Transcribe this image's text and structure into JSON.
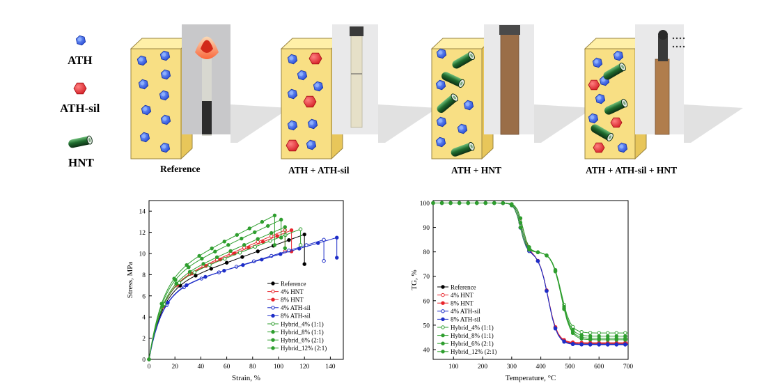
{
  "legend": {
    "ath": "ATH",
    "ath_sil": "ATH-sil",
    "hnt": "HNT"
  },
  "panels": [
    "Reference",
    "ATH + ATH-sil",
    "ATH + HNT",
    "ATH + ATH-sil + HNT"
  ],
  "colors": {
    "ath": "#2f5fe8",
    "ath_sil": "#e8242b",
    "hnt": "#1f6b2e",
    "box": "#f8df84"
  },
  "chart_data": [
    {
      "type": "line",
      "xlabel": "Strain, %",
      "ylabel": "Stress, MPa",
      "xlim": [
        0,
        150
      ],
      "ylim": [
        0,
        15
      ],
      "xticks": [
        "0",
        "20",
        "40",
        "60",
        "80",
        "100",
        "120",
        "140"
      ],
      "yticks": [
        "0",
        "2",
        "4",
        "6",
        "8",
        "10",
        "12",
        "14"
      ],
      "series": [
        {
          "name": "Reference",
          "color": "#000000",
          "marker": "filled",
          "max_stress": 11.8,
          "break_strain": 120,
          "failure_stress": 9.0
        },
        {
          "name": "4% HNT",
          "color": "#e8242b",
          "marker": "open",
          "max_stress": 12.2,
          "break_strain": 105,
          "failure_stress": 10.2
        },
        {
          "name": "8% HNT",
          "color": "#e8242b",
          "marker": "filled",
          "max_stress": 12.2,
          "break_strain": 110,
          "failure_stress": 10.2
        },
        {
          "name": "4% ATH-sil",
          "color": "#1d2dc8",
          "marker": "open",
          "max_stress": 11.3,
          "break_strain": 135,
          "failure_stress": 9.3
        },
        {
          "name": "8% ATH-sil",
          "color": "#1d2dc8",
          "marker": "filled",
          "max_stress": 11.5,
          "break_strain": 145,
          "failure_stress": 9.6
        },
        {
          "name": "Hybrid_4% (1:1)",
          "color": "#2e9e2e",
          "marker": "open",
          "max_stress": 12.3,
          "break_strain": 117,
          "failure_stress": 10.8
        },
        {
          "name": "Hybrid_8% (1:1)",
          "color": "#2e9e2e",
          "marker": "filled",
          "max_stress": 13.2,
          "break_strain": 102,
          "failure_stress": 11.5
        },
        {
          "name": "Hybrid_6% (2:1)",
          "color": "#2e9e2e",
          "marker": "filled",
          "max_stress": 12.5,
          "break_strain": 105,
          "failure_stress": 10.5
        },
        {
          "name": "Hybrid_12% (2:1)",
          "color": "#2e9e2e",
          "marker": "filled",
          "max_stress": 13.6,
          "break_strain": 97,
          "failure_stress": 10.8
        }
      ]
    },
    {
      "type": "line",
      "xlabel": "Temperature, °C",
      "ylabel": "TG, %",
      "xlim": [
        30,
        700
      ],
      "ylim": [
        36,
        101
      ],
      "xticks": [
        "100",
        "200",
        "300",
        "400",
        "500",
        "600",
        "700"
      ],
      "yticks": [
        "40",
        "50",
        "60",
        "70",
        "80",
        "90",
        "100"
      ],
      "series": [
        {
          "name": "Reference",
          "color": "#000000",
          "marker": "filled",
          "residue": 42.5
        },
        {
          "name": "4% HNT",
          "color": "#e8242b",
          "marker": "open",
          "residue": 42.5
        },
        {
          "name": "8% HNT",
          "color": "#e8242b",
          "marker": "filled",
          "residue": 42.8
        },
        {
          "name": "4% ATH-sil",
          "color": "#1d2dc8",
          "marker": "open",
          "residue": 42.2
        },
        {
          "name": "8% ATH-sil",
          "color": "#1d2dc8",
          "marker": "filled",
          "residue": 42.0
        },
        {
          "name": "Hybrid_4% (1:1)",
          "color": "#2e9e2e",
          "marker": "open",
          "residue": 46.8
        },
        {
          "name": "Hybrid_8% (1:1)",
          "color": "#2e9e2e",
          "marker": "filled",
          "residue": 45.5
        },
        {
          "name": "Hybrid_6% (2:1)",
          "color": "#2e9e2e",
          "marker": "filled",
          "residue": 44.0
        },
        {
          "name": "Hybrid_12% (2:1)",
          "color": "#2e9e2e",
          "marker": "filled",
          "residue": 44.6
        }
      ]
    }
  ]
}
